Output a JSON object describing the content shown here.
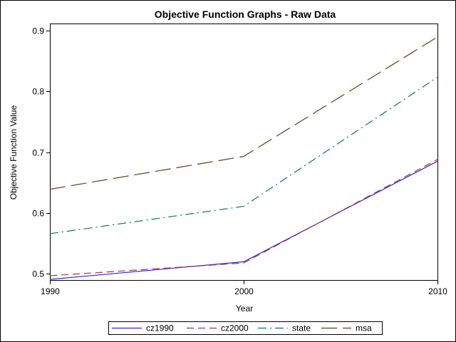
{
  "chart_data": {
    "type": "line",
    "title": "Objective Function Graphs - Raw Data",
    "xlabel": "Year",
    "ylabel": "Objective Function Value",
    "x": [
      1990,
      2000,
      2010
    ],
    "xlim": [
      1990,
      2010
    ],
    "ylim": [
      0.49,
      0.91
    ],
    "xticks": [
      "1990",
      "2000",
      "2010"
    ],
    "yticks": [
      "0.5",
      "0.6",
      "0.7",
      "0.8",
      "0.9"
    ],
    "grid": false,
    "legend_position": "bottom",
    "series": [
      {
        "name": "cz1990",
        "values": [
          0.491,
          0.52,
          0.685
        ],
        "color": "#2b2bd8",
        "dash": "solid"
      },
      {
        "name": "cz2000",
        "values": [
          0.497,
          0.518,
          0.688
        ],
        "color": "#a3334f",
        "dash": "dash"
      },
      {
        "name": "state",
        "values": [
          0.566,
          0.611,
          0.823
        ],
        "color": "#127272",
        "dash": "dashdot"
      },
      {
        "name": "msa",
        "values": [
          0.639,
          0.693,
          0.889
        ],
        "color": "#6a3b1c",
        "dash": "longdash"
      }
    ]
  }
}
